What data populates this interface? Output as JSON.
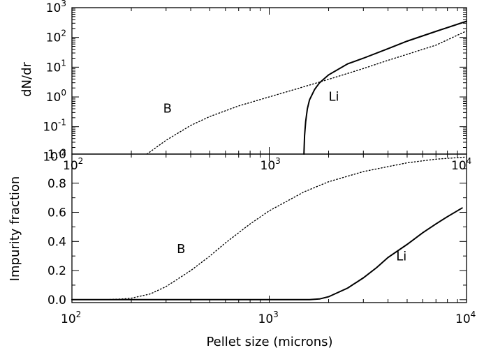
{
  "chart_data": [
    {
      "type": "line",
      "xlabel": "",
      "ylabel": "dN/dr",
      "xscale": "log",
      "yscale": "log",
      "xlim": [
        100,
        10000
      ],
      "ylim": [
        0.012,
        1000
      ],
      "x_tick_labels": [
        {
          "base": "10",
          "exp": "2"
        },
        {
          "base": "10",
          "exp": "3"
        },
        {
          "base": "10",
          "exp": "4"
        }
      ],
      "y_tick_labels": [
        {
          "base": "10",
          "exp": "-2"
        },
        {
          "base": "10",
          "exp": "-1"
        },
        {
          "base": "10",
          "exp": "0"
        },
        {
          "base": "10",
          "exp": "1"
        },
        {
          "base": "10",
          "exp": "2"
        },
        {
          "base": "10",
          "exp": "3"
        }
      ],
      "series": [
        {
          "name": "B",
          "style": "dotted",
          "x": [
            240,
            300,
            400,
            500,
            700,
            1000,
            1500,
            2000,
            3000,
            4000,
            5000,
            7000,
            10000
          ],
          "y": [
            0.012,
            0.035,
            0.11,
            0.22,
            0.5,
            1.0,
            2.2,
            3.9,
            9.0,
            17,
            27,
            55,
            165
          ]
        },
        {
          "name": "Li",
          "style": "solid",
          "x": [
            1500,
            1510,
            1530,
            1560,
            1600,
            1700,
            1800,
            2000,
            2500,
            3000,
            4000,
            5000,
            7000,
            10000
          ],
          "y": [
            0.012,
            0.05,
            0.15,
            0.4,
            0.8,
            1.8,
            3.0,
            5.5,
            13,
            20,
            42,
            75,
            160,
            350
          ]
        }
      ],
      "annotations": [
        {
          "text": "B",
          "x": 290,
          "y": 0.3
        },
        {
          "text": "Li",
          "x": 2000,
          "y": 0.75
        }
      ]
    },
    {
      "type": "line",
      "xlabel": "Pellet size (microns)",
      "ylabel": "Impurity fraction",
      "xscale": "log",
      "yscale": "linear",
      "xlim": [
        100,
        10000
      ],
      "ylim": [
        -0.02,
        1.0
      ],
      "x_tick_labels": [
        {
          "base": "10",
          "exp": "2"
        },
        {
          "base": "10",
          "exp": "3"
        },
        {
          "base": "10",
          "exp": "4"
        }
      ],
      "y_ticks": [
        0.0,
        0.2,
        0.4,
        0.6,
        0.8,
        1.0
      ],
      "y_tick_labels": [
        "0.0",
        "0.2",
        "0.4",
        "0.6",
        "0.8",
        "1.0"
      ],
      "series": [
        {
          "name": "B",
          "style": "dotted",
          "x": [
            150,
            180,
            200,
            250,
            300,
            400,
            500,
            600,
            800,
            1000,
            1500,
            2000,
            3000,
            5000,
            7000,
            10000
          ],
          "y": [
            0.0,
            0.005,
            0.01,
            0.04,
            0.09,
            0.2,
            0.3,
            0.39,
            0.52,
            0.61,
            0.74,
            0.81,
            0.88,
            0.94,
            0.965,
            0.98
          ]
        },
        {
          "name": "Li",
          "style": "solid",
          "x": [
            100,
            1600,
            1800,
            2000,
            2500,
            3000,
            3500,
            4000,
            5000,
            6000,
            7000,
            8000,
            9500
          ],
          "y": [
            0.0,
            0.0,
            0.005,
            0.02,
            0.08,
            0.15,
            0.22,
            0.29,
            0.38,
            0.46,
            0.52,
            0.57,
            0.63
          ]
        }
      ],
      "annotations": [
        {
          "text": "B",
          "x": 340,
          "y": 0.32
        },
        {
          "text": "Li",
          "x": 4400,
          "y": 0.27
        }
      ]
    }
  ]
}
